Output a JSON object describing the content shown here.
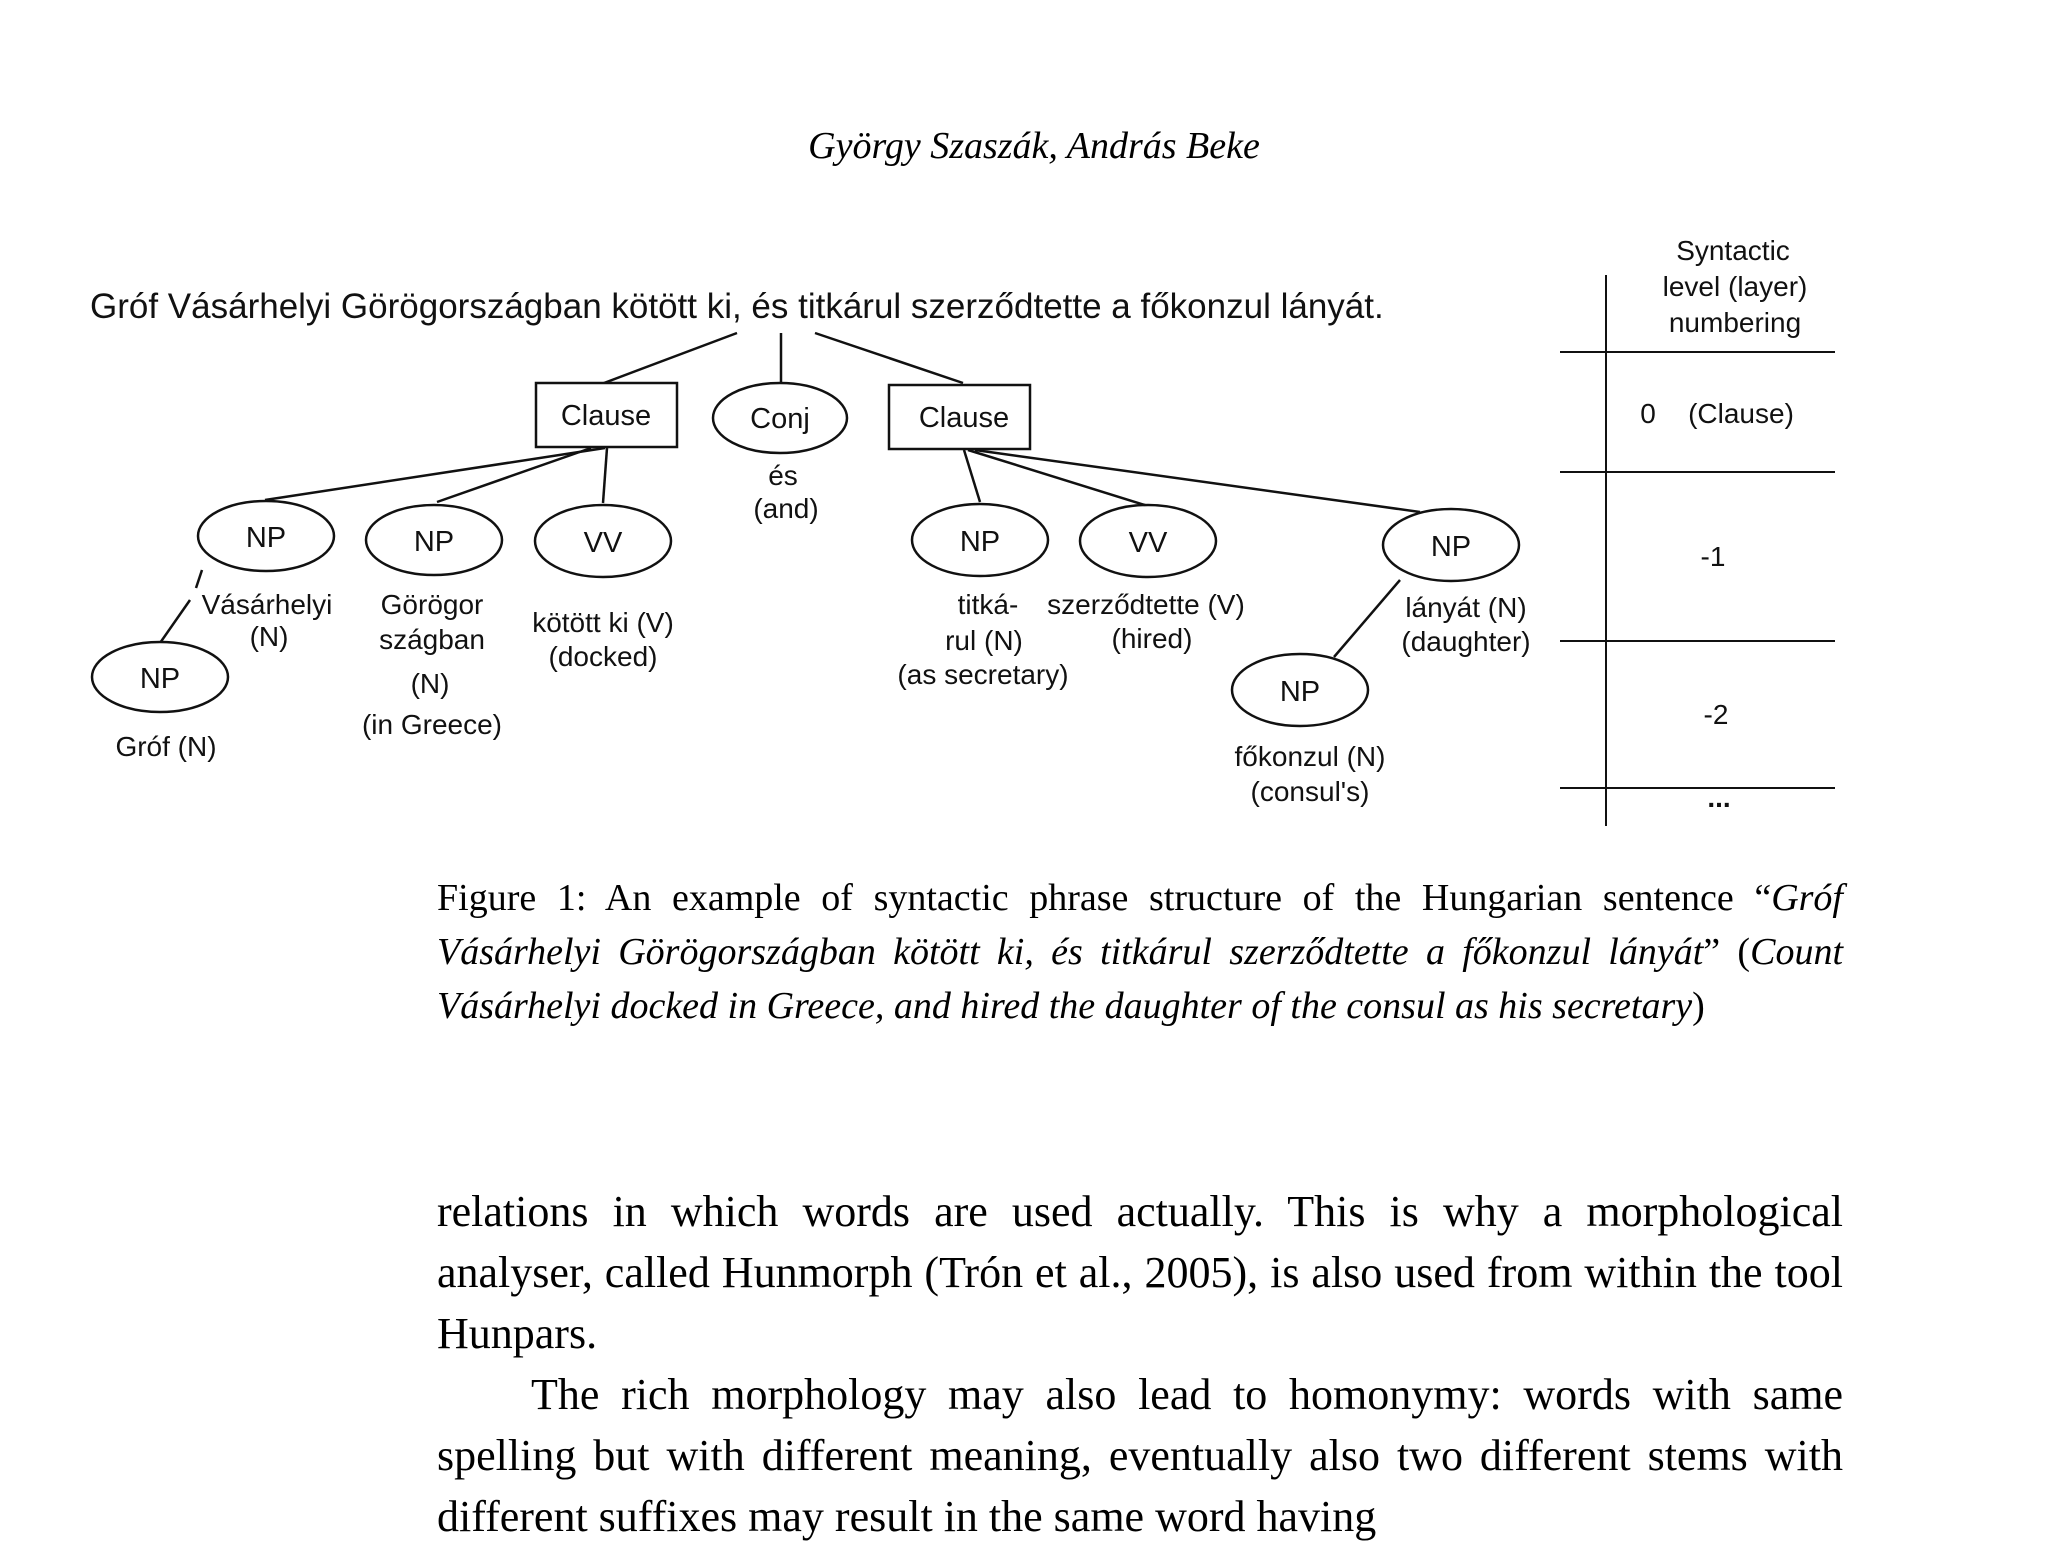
{
  "header": {
    "authors": "György Szaszák, András Beke"
  },
  "figure": {
    "sentence": "Gróf Vásárhelyi Görögországban kötött ki, és titkárul szerződtette a főkonzul lányát.",
    "nodes": {
      "clause1": "Clause",
      "conj": "Conj",
      "clause2": "Clause",
      "np_vasarhelyi": "NP",
      "np_gorogorszagban": "NP",
      "vv_kotott": "VV",
      "np_titkarul": "NP",
      "vv_szerzodtette": "VV",
      "np_lanyat": "NP",
      "np_grof": "NP",
      "np_fokonzul": "NP"
    },
    "labels": {
      "es": "és",
      "and": "(and)",
      "vasarhelyi": "Vásárhelyi",
      "vasarhelyi_n": "(N)",
      "gorog_1": "Görögor",
      "gorog_2": "szágban",
      "gorog_3": "(N)",
      "gorog_4": "(in Greece)",
      "kotott_1": "kötött ki (V)",
      "kotott_2": "(docked)",
      "titka_1": "titká-",
      "titka_2": "rul (N)",
      "titka_3": "(as secretary)",
      "szerz_1": "szerződtette (V)",
      "szerz_2": "(hired)",
      "lanyat_1": "lányát (N)",
      "lanyat_2": "(daughter)",
      "grof": "Gróf (N)",
      "fokonzul_1": "főkonzul (N)",
      "fokonzul_2": "(consul's)"
    },
    "level_table": {
      "header_1": "Syntactic",
      "header_2": "level (layer)",
      "header_3": "numbering",
      "level_0": "0",
      "level_0_note": "(Clause)",
      "level_1": "-1",
      "level_2": "-2",
      "more": "..."
    }
  },
  "caption": {
    "prefix": "Figure 1: An example of syntactic phrase structure of the Hungarian sentence “",
    "sentence": "Gróf Vásárhelyi Görögországban kötött ki, és titkárul szerződtette a főkonzul lányát",
    "middle": "” (",
    "translation": "Count Vásárhelyi docked in Greece, and hired the daughter of the consul as his secretary",
    "suffix": ")"
  },
  "body": {
    "para1": "relations in which words are used actually. This is why a morphological analyser, called Hunmorph (Trón et al., 2005), is also used from within the tool Hunpars.",
    "para2": "The rich morphology may also lead to homonymy: words with same spelling but with different meaning, eventually also two different stems with different suffixes may result in the same word having"
  }
}
